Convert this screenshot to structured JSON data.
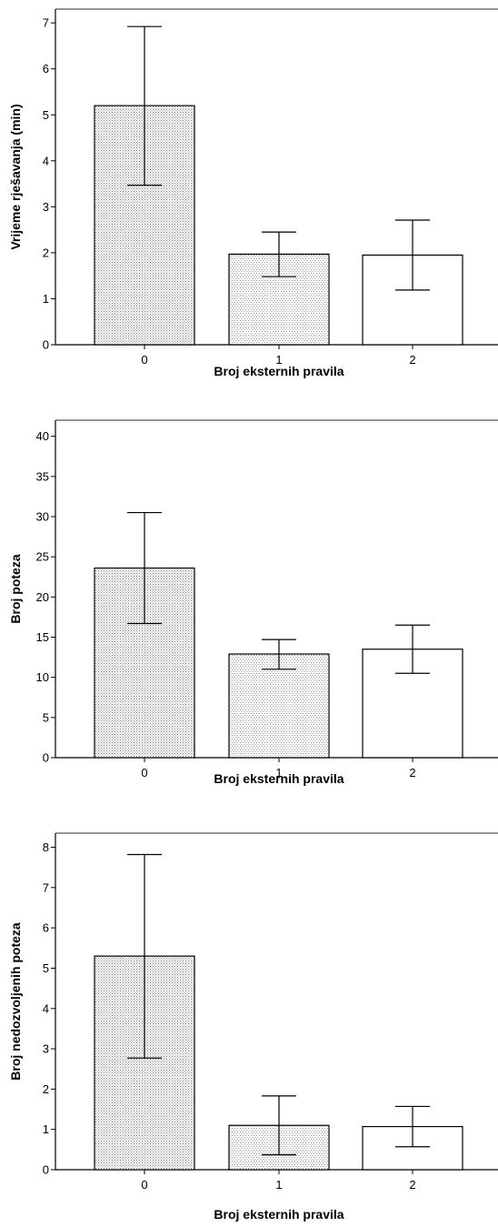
{
  "colors": {
    "axis": "#000000",
    "frame": "#555555",
    "dense_pattern": "#808080",
    "light_pattern": "#909090",
    "white_bar": "#ffffff"
  },
  "chart_data": [
    {
      "type": "bar",
      "xlabel": "Broj eksternih pravila",
      "ylabel": "Vrijeme rješavanja (min)",
      "ylim": [
        0,
        7.3
      ],
      "yticks": [
        0,
        1,
        2,
        3,
        4,
        5,
        6,
        7
      ],
      "categories": [
        "0",
        "1",
        "2"
      ],
      "values": [
        5.2,
        1.97,
        1.95
      ],
      "error_low": [
        3.47,
        1.48,
        1.19
      ],
      "error_high": [
        6.92,
        2.45,
        2.71
      ],
      "fills": [
        "dense-dots",
        "light-dots",
        "white"
      ],
      "grid": false
    },
    {
      "type": "bar",
      "xlabel": "Broj eksternih pravila",
      "ylabel": "Broj poteza",
      "ylim": [
        0,
        42
      ],
      "yticks": [
        0,
        5,
        10,
        15,
        20,
        25,
        30,
        35,
        40
      ],
      "categories": [
        "0",
        "1",
        "2"
      ],
      "values": [
        23.6,
        12.9,
        13.5
      ],
      "error_low": [
        16.7,
        11.0,
        10.5
      ],
      "error_high": [
        30.5,
        14.7,
        16.5
      ],
      "fills": [
        "dense-dots",
        "light-dots",
        "white"
      ],
      "grid": false
    },
    {
      "type": "bar",
      "xlabel": "Broj eksternih pravila",
      "ylabel": "Broj nedozvoljenih poteza",
      "ylim": [
        0,
        8.35
      ],
      "yticks": [
        0,
        1,
        2,
        3,
        4,
        5,
        6,
        7,
        8
      ],
      "categories": [
        "0",
        "1",
        "2"
      ],
      "values": [
        5.3,
        1.1,
        1.07
      ],
      "error_low": [
        2.77,
        0.37,
        0.57
      ],
      "error_high": [
        7.82,
        1.83,
        1.57
      ],
      "fills": [
        "dense-dots",
        "light-dots",
        "white"
      ],
      "grid": false
    }
  ]
}
